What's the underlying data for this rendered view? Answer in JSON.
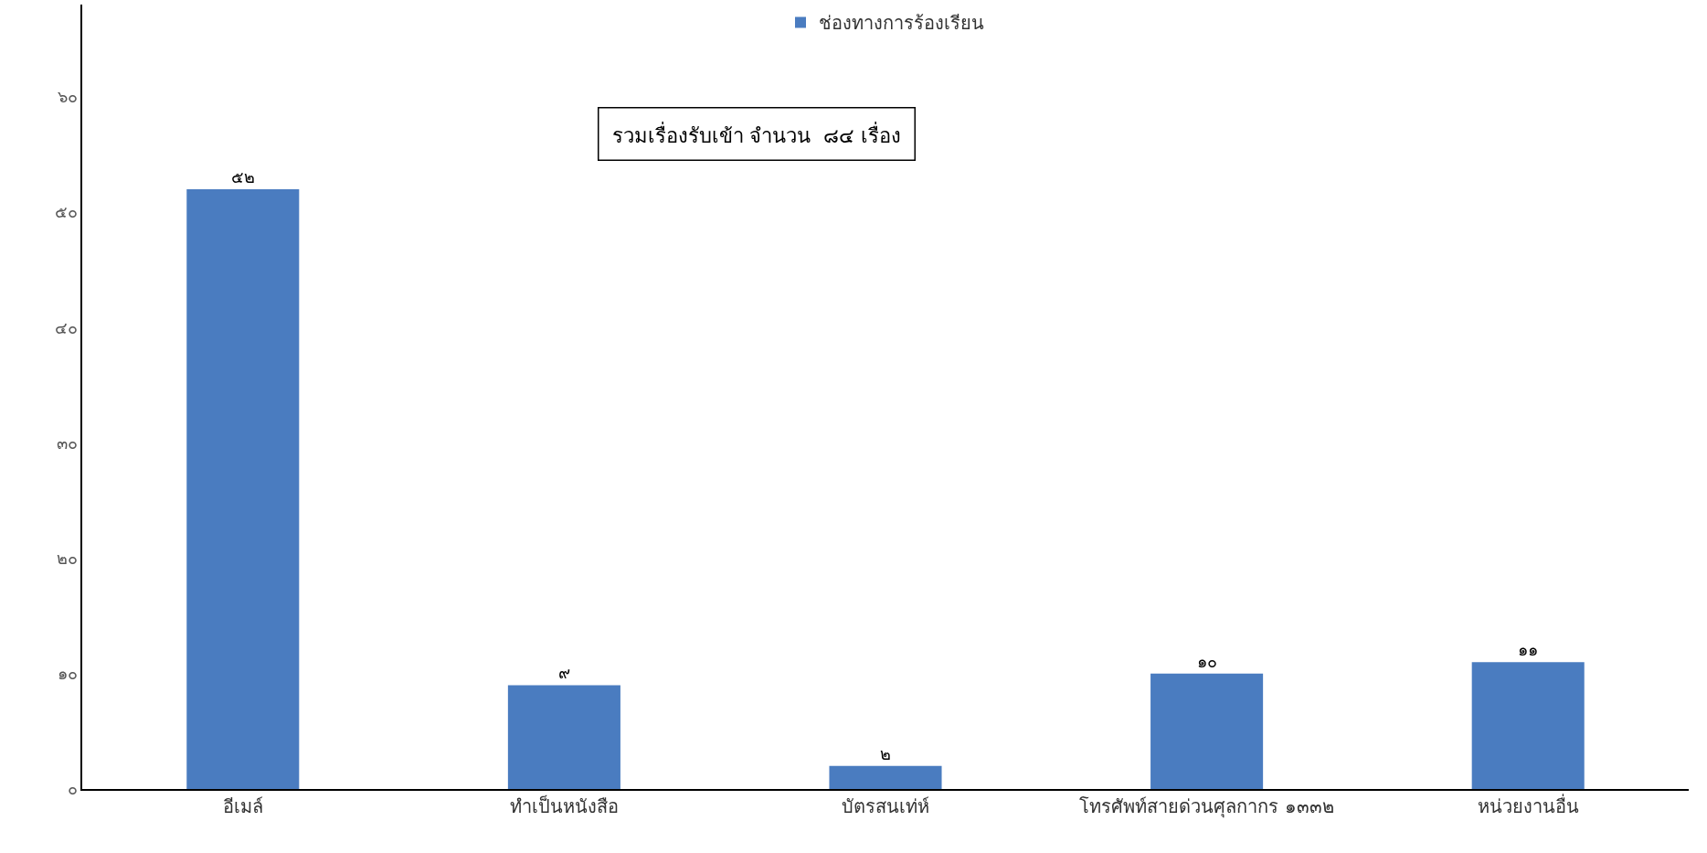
{
  "chart_data": {
    "type": "bar",
    "categories": [
      "อีเมล์",
      "ทำเป็นหนังสือ",
      "บัตรสนเท่ห์",
      "โทรศัพท์สายด่วนศุลกากร ๑๓๓๒",
      "หน่วยงานอื่น"
    ],
    "series": [
      {
        "name": "ช่องทางการร้องเรียน",
        "color": "#4a7cc0",
        "values": [
          52,
          9,
          2,
          10,
          11
        ],
        "value_labels": [
          "๕๒",
          "๙",
          "๒",
          "๑๐",
          "๑๑"
        ]
      }
    ],
    "ylim": [
      0,
      68
    ],
    "yticks": [
      {
        "value": 0,
        "label": "๐"
      },
      {
        "value": 10,
        "label": "๑๐"
      },
      {
        "value": 20,
        "label": "๒๐"
      },
      {
        "value": 30,
        "label": "๓๐"
      },
      {
        "value": 40,
        "label": "๔๐"
      },
      {
        "value": 50,
        "label": "๕๐"
      },
      {
        "value": 60,
        "label": "๖๐"
      }
    ],
    "annotations": [
      "รวมเรื่องรับเข้า จำนวน  ๘๔ เรื่อง"
    ],
    "grid": false,
    "legend": "top"
  }
}
